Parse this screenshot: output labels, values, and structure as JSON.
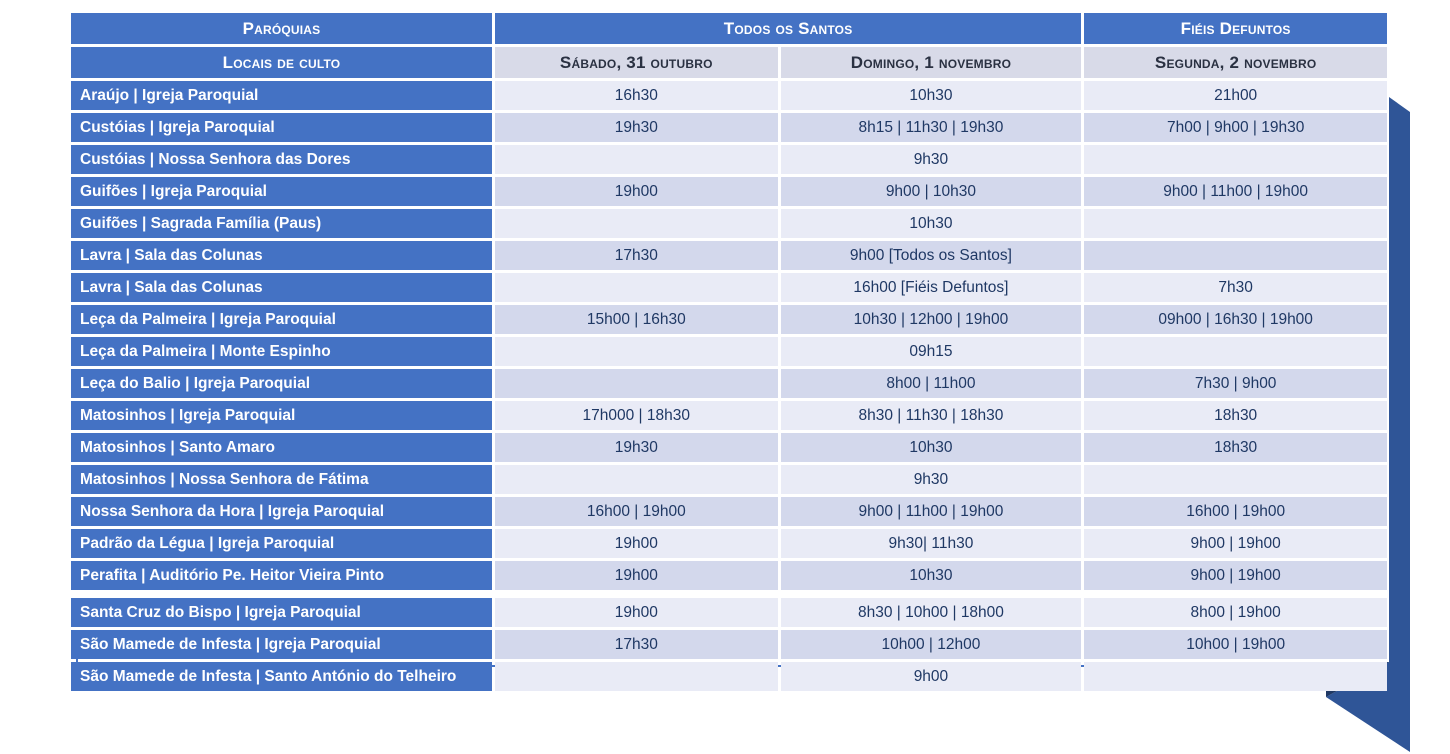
{
  "table": {
    "header_row1": {
      "paroquias": "Paróquias",
      "todos_os_santos": "Todos os Santos",
      "fieis_defuntos": "Fiéis Defuntos"
    },
    "header_row2": {
      "locais_de_culto": "Locais de culto",
      "sabado": "Sábado, 31 outubro",
      "domingo": "Domingo, 1 novembro",
      "segunda": "Segunda, 2 novembro"
    },
    "section_gap_before_row": 16,
    "rows": [
      {
        "local": "Araújo | Igreja Paroquial",
        "sat": "16h30",
        "sun": "10h30",
        "mon": "21h00"
      },
      {
        "local": "Custóias | Igreja Paroquial",
        "sat": "19h30",
        "sun": "8h15 | 11h30 | 19h30",
        "mon": "7h00 | 9h00 | 19h30"
      },
      {
        "local": "Custóias | Nossa Senhora das Dores",
        "sat": "",
        "sun": "9h30",
        "mon": ""
      },
      {
        "local": "Guifões | Igreja Paroquial",
        "sat": "19h00",
        "sun": "9h00 | 10h30",
        "mon": "9h00 | 11h00 | 19h00"
      },
      {
        "local": "Guifões | Sagrada Família (Paus)",
        "sat": "",
        "sun": "10h30",
        "mon": ""
      },
      {
        "local": "Lavra | Sala das Colunas",
        "sat": "17h30",
        "sun": "9h00 [Todos os Santos]",
        "mon": ""
      },
      {
        "local": "Lavra | Sala das Colunas",
        "sat": "",
        "sun": "16h00 [Fiéis Defuntos]",
        "mon": "7h30"
      },
      {
        "local": "Leça da Palmeira | Igreja Paroquial",
        "sat": "15h00 | 16h30",
        "sun": "10h30 | 12h00 | 19h00",
        "mon": "09h00 | 16h30 | 19h00"
      },
      {
        "local": "Leça da Palmeira | Monte Espinho",
        "sat": "",
        "sun": "09h15",
        "mon": ""
      },
      {
        "local": "Leça do Balio | Igreja Paroquial",
        "sat": "",
        "sun": "8h00 | 11h00",
        "mon": "7h30 | 9h00"
      },
      {
        "local": "Matosinhos | Igreja Paroquial",
        "sat": "17h000 | 18h30",
        "sun": "8h30 | 11h30 | 18h30",
        "mon": "18h30"
      },
      {
        "local": "Matosinhos | Santo Amaro",
        "sat": "19h30",
        "sun": "10h30",
        "mon": "18h30"
      },
      {
        "local": "Matosinhos | Nossa Senhora de Fátima",
        "sat": "",
        "sun": "9h30",
        "mon": ""
      },
      {
        "local": "Nossa Senhora da Hora | Igreja Paroquial",
        "sat": "16h00 | 19h00",
        "sun": "9h00 | 11h00 | 19h00",
        "mon": "16h00 | 19h00"
      },
      {
        "local": "Padrão da Légua | Igreja Paroquial",
        "sat": "19h00",
        "sun": "9h30| 11h30",
        "mon": "9h00 | 19h00"
      },
      {
        "local": "Perafita | Auditório Pe. Heitor Vieira Pinto",
        "sat": "19h00",
        "sun": "10h30",
        "mon": "9h00 | 19h00"
      },
      {
        "local": "Santa Cruz do Bispo | Igreja Paroquial",
        "sat": "19h00",
        "sun": "8h30 | 10h00 | 18h00",
        "mon": "8h00 | 19h00"
      },
      {
        "local": "São Mamede de Infesta | Igreja Paroquial",
        "sat": "17h30",
        "sun": "10h00 | 12h00",
        "mon": "10h00 | 19h00"
      },
      {
        "local": "São Mamede de Infesta | Santo António do Telheiro",
        "sat": "",
        "sun": "9h00",
        "mon": ""
      }
    ]
  },
  "colors": {
    "header_blue": "#4472C4",
    "row_light": "#E9EBF6",
    "row_dark": "#D3D8EC",
    "date_header_bg": "#D8DAE8",
    "time_text": "#1F3864",
    "date_text": "#2A3142",
    "ribbon_blue": "#2F5597",
    "ribbon_fold": "#1F3864",
    "outline_blue": "#4472C4"
  }
}
